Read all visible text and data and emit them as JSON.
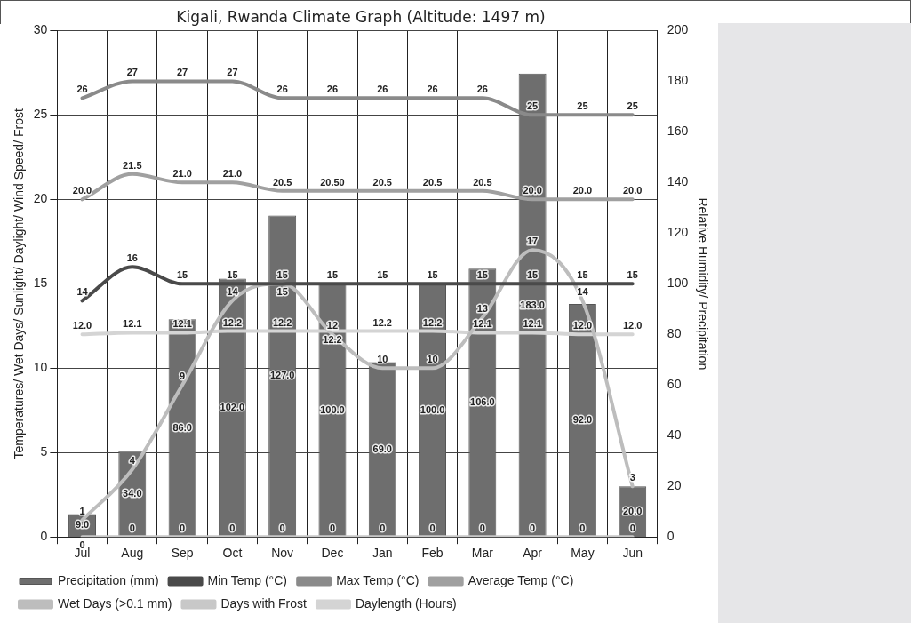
{
  "chart_data": {
    "type": "line",
    "title": "Kigali, Rwanda Climate Graph (Altitude: 1497 m)",
    "ylabel": "Temperatures/ Wet Days/ Sunlight/ Daylight/ Wind Speed/ Frost",
    "y2label": "Relative Humidity/ Precipitation",
    "categories": [
      "Jul",
      "Aug",
      "Sep",
      "Oct",
      "Nov",
      "Dec",
      "Jan",
      "Feb",
      "Mar",
      "Apr",
      "May",
      "Jun"
    ],
    "series": [
      {
        "name": "Precipitation (mm)",
        "type": "bar",
        "axis": "y2",
        "color": "#6e6e6e",
        "values": [
          9,
          34,
          86,
          102,
          127,
          100,
          69,
          100,
          106,
          183,
          92,
          20
        ],
        "value_labels": [
          "9.0",
          "34.0",
          "86.0",
          "102.0",
          "127.0",
          "100.0",
          "69.0",
          "100.0",
          "106.0",
          "183.0",
          "92.0",
          "20.0"
        ]
      },
      {
        "name": "Min Temp (°C)",
        "color": "#4a4a4a",
        "values": [
          14,
          16,
          15,
          15,
          15,
          15,
          15,
          15,
          15,
          15,
          15,
          15
        ],
        "value_labels": [
          "14",
          "16",
          "15",
          "15",
          "15",
          "15",
          "15",
          "15",
          "15",
          "15",
          "15",
          "15"
        ]
      },
      {
        "name": "Max Temp (°C)",
        "color": "#8a8a8a",
        "values": [
          26,
          27,
          27,
          27,
          26,
          26,
          26,
          26,
          26,
          25,
          25,
          25
        ],
        "value_labels": [
          "26",
          "27",
          "27",
          "27",
          "26",
          "26",
          "26",
          "26",
          "26",
          "25",
          "25",
          "25"
        ]
      },
      {
        "name": "Average Temp (°C)",
        "color": "#a0a0a0",
        "values": [
          20.0,
          21.5,
          21.0,
          21.0,
          20.5,
          20.5,
          20.5,
          20.5,
          20.5,
          20.0,
          20.0,
          20.0
        ],
        "value_labels": [
          "20.0",
          "21.5",
          "21.0",
          "21.0",
          "20.5",
          "20.50",
          "20.5",
          "20.5",
          "20.5",
          "20.0",
          "20.0",
          "20.0"
        ]
      },
      {
        "name": "Wet Days (>0.1 mm)",
        "color": "#bdbdbd",
        "values": [
          1,
          4,
          9,
          14,
          15,
          12,
          10,
          10,
          13,
          17,
          14,
          3
        ],
        "value_labels": [
          "1",
          "4",
          "9",
          "14",
          "15",
          "12",
          "10",
          "10",
          "13",
          "17",
          "14",
          "3"
        ]
      },
      {
        "name": "Days with Frost",
        "color": "#c8c8c8",
        "values": [
          0,
          0,
          0,
          0,
          0,
          0,
          0,
          0,
          0,
          0,
          0,
          0
        ],
        "value_labels": [
          "0",
          "0",
          "0",
          "0",
          "0",
          "0",
          "0",
          "0",
          "0",
          "0",
          "0",
          "0"
        ]
      },
      {
        "name": "Daylength (Hours)",
        "color": "#d4d4d4",
        "values": [
          12.0,
          12.1,
          12.1,
          12.2,
          12.2,
          12.2,
          12.2,
          12.2,
          12.1,
          12.1,
          12.0,
          12.0
        ],
        "value_labels": [
          "12.0",
          "12.1",
          "12.1",
          "12.2",
          "12.2",
          "12.2",
          "12.2",
          "12.2",
          "12.1",
          "12.1",
          "12.0",
          "12.0"
        ]
      }
    ],
    "ylim": [
      0,
      30
    ],
    "yticks": [
      0,
      5,
      10,
      15,
      20,
      25,
      30
    ],
    "y2lim": [
      0,
      200
    ],
    "y2ticks": [
      0,
      20,
      40,
      60,
      80,
      100,
      120,
      140,
      160,
      180,
      200
    ],
    "grid": true,
    "legend": "bottom"
  }
}
